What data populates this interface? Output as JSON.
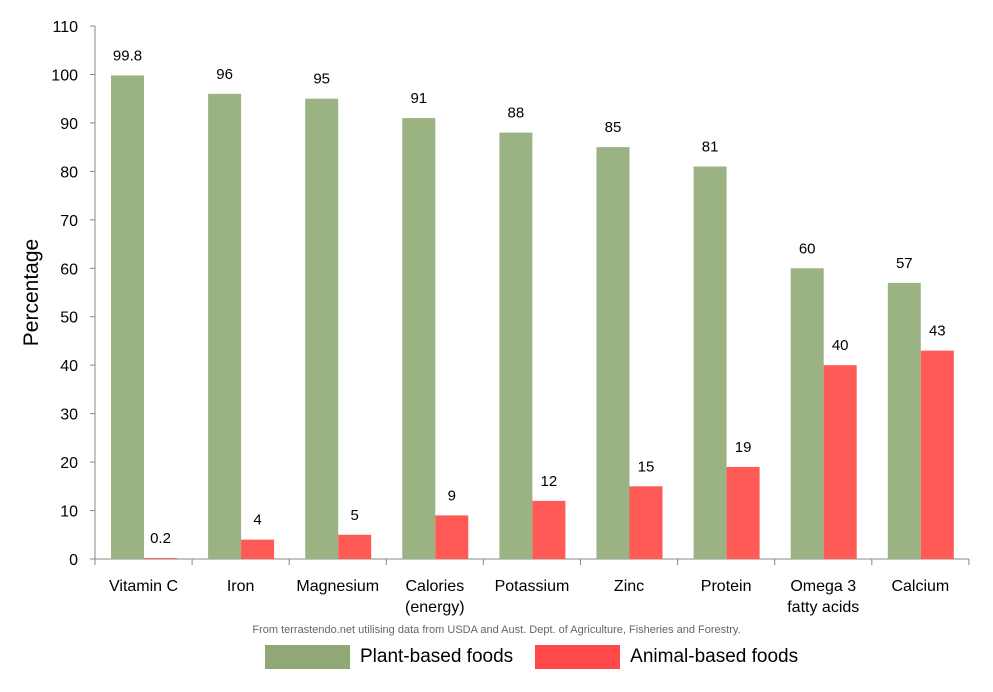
{
  "chart_data": {
    "type": "bar",
    "title": "",
    "xlabel": "",
    "ylabel": "Percentage",
    "ylim": [
      0,
      110
    ],
    "yticks": [
      0,
      10,
      20,
      30,
      40,
      50,
      60,
      70,
      80,
      90,
      100,
      110
    ],
    "categories": [
      [
        "Vitamin C"
      ],
      [
        "Iron"
      ],
      [
        "Magnesium"
      ],
      [
        "Calories",
        "(energy)"
      ],
      [
        "Potassium"
      ],
      [
        "Zinc"
      ],
      [
        "Protein"
      ],
      [
        "Omega 3",
        "fatty acids"
      ],
      [
        "Calcium"
      ]
    ],
    "series": [
      {
        "name": "Plant-based foods",
        "color": "#9BB383",
        "legend_color": "#8FA876",
        "values": [
          99.8,
          96,
          95,
          91,
          88,
          85,
          81,
          60,
          57
        ]
      },
      {
        "name": "Animal-based foods",
        "color": "#FF5A55",
        "legend_color": "#FF4848",
        "values": [
          0.2,
          4,
          5,
          9,
          12,
          15,
          19,
          40,
          43
        ]
      }
    ],
    "grid": false,
    "legend_position": "bottom",
    "source_note": "From terrastendo.net utilising data from USDA and Aust. Dept. of Agriculture, Fisheries and Forestry."
  }
}
